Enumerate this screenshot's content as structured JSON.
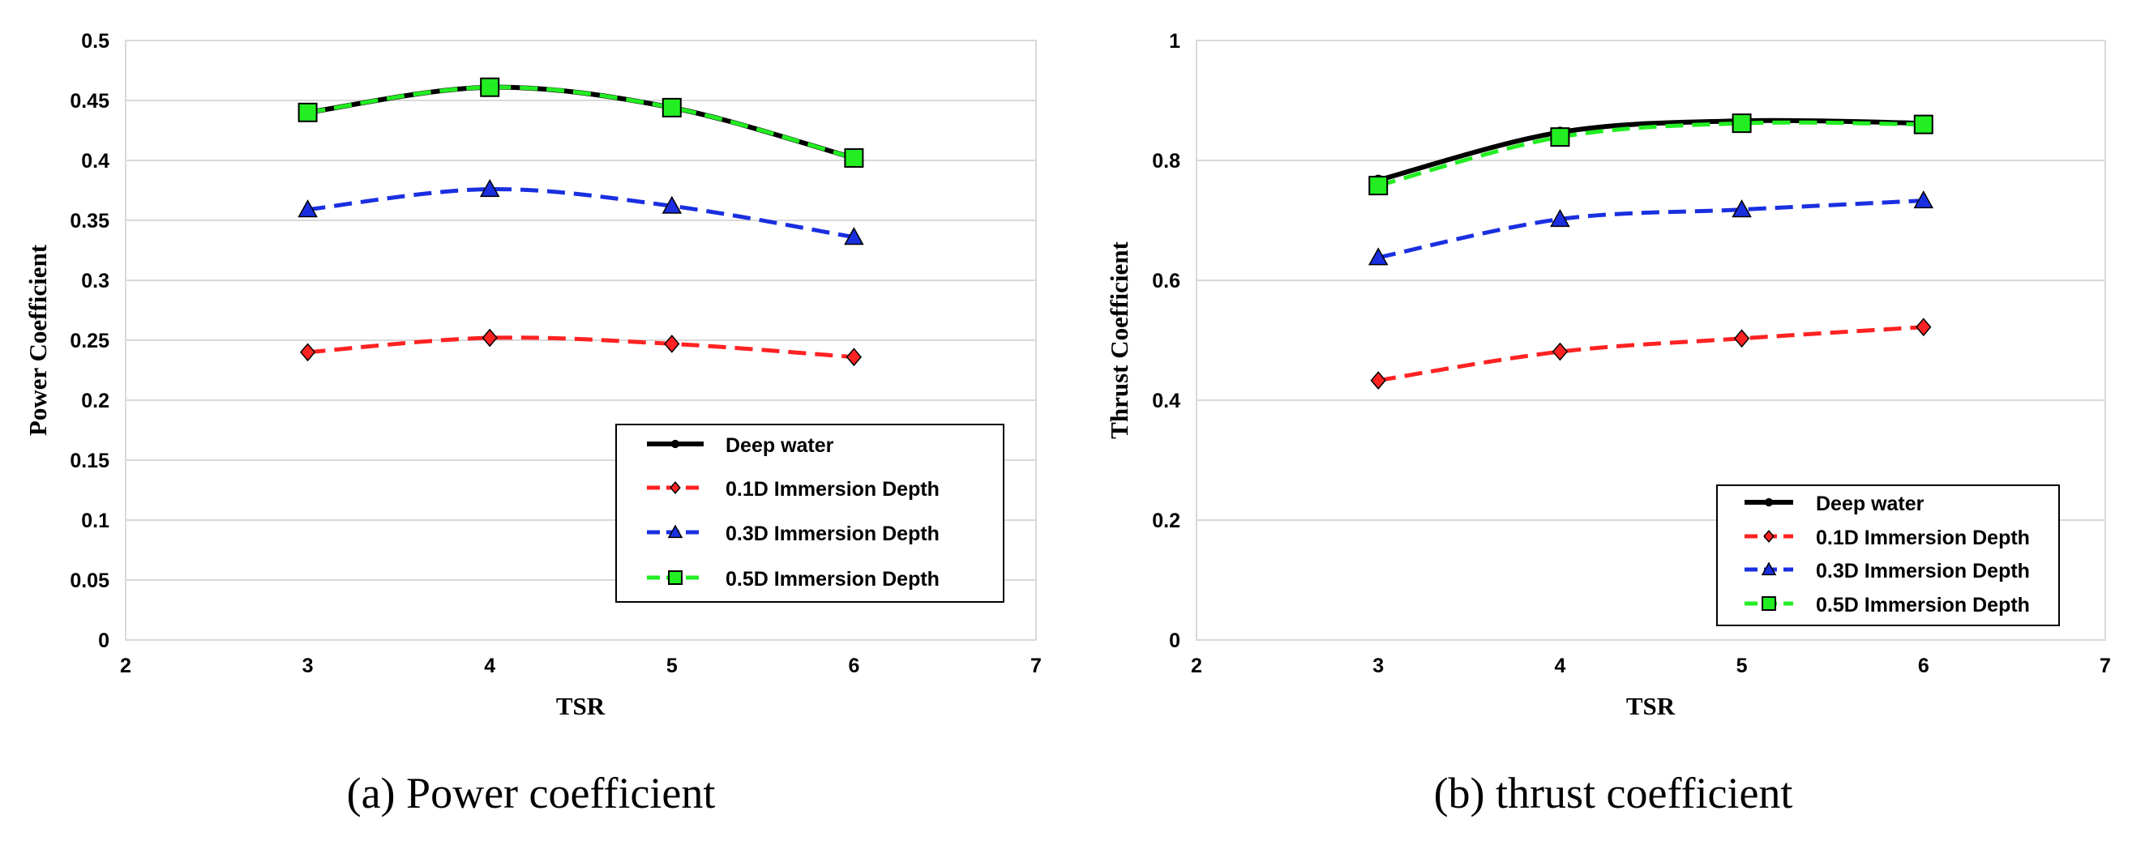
{
  "chart_data": [
    {
      "type": "line",
      "id": "power",
      "caption": "(a) Power coefficient",
      "xlabel": "TSR",
      "ylabel": "Power Coefficient",
      "xlim": [
        2,
        7
      ],
      "ylim": [
        0,
        0.5
      ],
      "xticks": [
        2,
        3,
        4,
        5,
        6,
        7
      ],
      "xtick_labels": [
        "2",
        "3",
        "4",
        "5",
        "6",
        "7"
      ],
      "yticks": [
        0,
        0.05,
        0.1,
        0.15,
        0.2,
        0.25,
        0.3,
        0.35,
        0.4,
        0.45,
        0.5
      ],
      "ytick_labels": [
        "0",
        "0.05",
        "0.1",
        "0.15",
        "0.2",
        "0.25",
        "0.3",
        "0.35",
        "0.4",
        "0.45",
        "0.5"
      ],
      "grid": "horizontal",
      "legend_position": "bottom-right",
      "x": [
        3,
        4,
        5,
        6
      ],
      "series": [
        {
          "name": "Deep water",
          "values": [
            0.44,
            0.461,
            0.444,
            0.402
          ],
          "color": "#000000",
          "marker": "circle",
          "dash": "solid",
          "smooth": true
        },
        {
          "name": "0.1D Immersion Depth",
          "values": [
            0.24,
            0.252,
            0.247,
            0.236
          ],
          "color": "#ff2222",
          "marker": "diamond",
          "dash": "dashed",
          "smooth": true
        },
        {
          "name": "0.3D Immersion Depth",
          "values": [
            0.359,
            0.376,
            0.362,
            0.336
          ],
          "color": "#1a2fe0",
          "marker": "triangle",
          "dash": "dashed",
          "smooth": true
        },
        {
          "name": "0.5D Immersion Depth",
          "values": [
            0.44,
            0.461,
            0.444,
            0.402
          ],
          "color": "#22ee22",
          "marker": "square",
          "dash": "dashed",
          "smooth": true
        }
      ]
    },
    {
      "type": "line",
      "id": "thrust",
      "caption": "(b) thrust coefficient",
      "xlabel": "TSR",
      "ylabel": "Thrust Coefficient",
      "xlim": [
        2,
        7
      ],
      "ylim": [
        0,
        1
      ],
      "xticks": [
        2,
        3,
        4,
        5,
        6,
        7
      ],
      "xtick_labels": [
        "2",
        "3",
        "4",
        "5",
        "6",
        "7"
      ],
      "yticks": [
        0,
        0.2,
        0.4,
        0.6,
        0.8,
        1
      ],
      "ytick_labels": [
        "0",
        "0.2",
        "0.4",
        "0.6",
        "0.8",
        "1"
      ],
      "grid": "horizontal",
      "legend_position": "bottom-right",
      "x": [
        3,
        4,
        5,
        6
      ],
      "series": [
        {
          "name": "Deep water",
          "values": [
            0.767,
            0.847,
            0.866,
            0.862
          ],
          "color": "#000000",
          "marker": "circle",
          "dash": "solid",
          "smooth": true
        },
        {
          "name": "0.1D Immersion Depth",
          "values": [
            0.433,
            0.481,
            0.503,
            0.522
          ],
          "color": "#ff2222",
          "marker": "diamond",
          "dash": "dashed",
          "smooth": true
        },
        {
          "name": "0.3D Immersion Depth",
          "values": [
            0.638,
            0.702,
            0.718,
            0.733
          ],
          "color": "#1a2fe0",
          "marker": "triangle",
          "dash": "dashed",
          "smooth": true
        },
        {
          "name": "0.5D Immersion Depth",
          "values": [
            0.758,
            0.839,
            0.862,
            0.86
          ],
          "color": "#22ee22",
          "marker": "square",
          "dash": "dashed",
          "smooth": true
        }
      ]
    }
  ]
}
